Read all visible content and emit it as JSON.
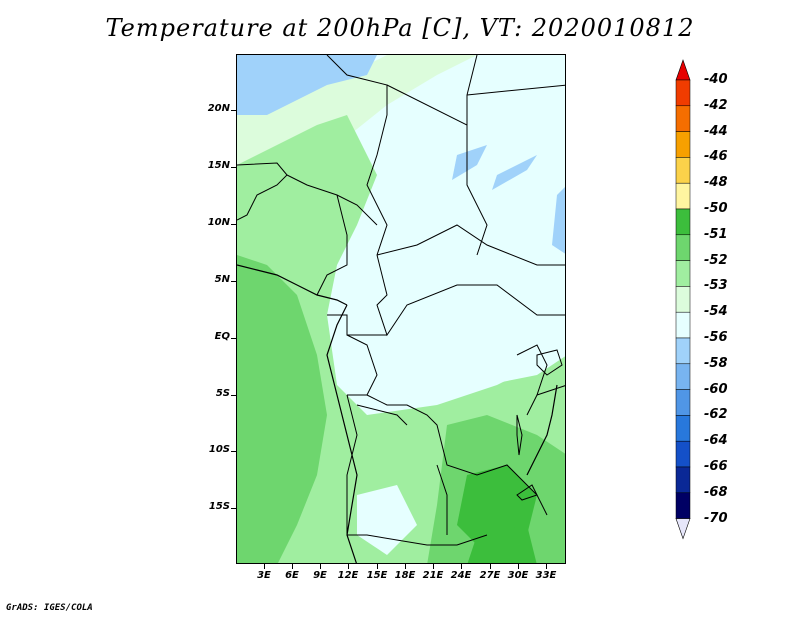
{
  "title": "Temperature at 200hPa [C], VT: 2020010812",
  "credit": "GrADS: IGES/COLA",
  "map": {
    "lat_ticks": [
      "20N",
      "15N",
      "10N",
      "5N",
      "EQ",
      "5S",
      "10S",
      "15S"
    ],
    "lon_ticks": [
      "3E",
      "6E",
      "9E",
      "12E",
      "15E",
      "18E",
      "21E",
      "24E",
      "27E",
      "30E",
      "33E"
    ]
  },
  "colorbar": {
    "labels": [
      "-40",
      "-42",
      "-44",
      "-46",
      "-48",
      "-50",
      "-51",
      "-52",
      "-53",
      "-54",
      "-56",
      "-58",
      "-60",
      "-62",
      "-64",
      "-66",
      "-68",
      "-70"
    ],
    "colors": [
      "#e60000",
      "#f03c00",
      "#f56e00",
      "#f7a000",
      "#fbd24a",
      "#fff5a0",
      "#3cbe3c",
      "#6ed66e",
      "#a0eea0",
      "#dcfcdc",
      "#e6ffff",
      "#a0d2fa",
      "#78b4f0",
      "#5096e6",
      "#2878dc",
      "#1450c8",
      "#0a2896",
      "#000064"
    ],
    "top_arrow_color": "#e60000",
    "bottom_arrow_color": "#e6e6fa"
  },
  "palette": {
    "green_dark": "#3cbe3c",
    "green_mid": "#6ed66e",
    "green_light": "#a0eea0",
    "green_pale": "#dcfcdc",
    "cyan_pale": "#e6ffff",
    "blue_light": "#a0d2fa"
  }
}
